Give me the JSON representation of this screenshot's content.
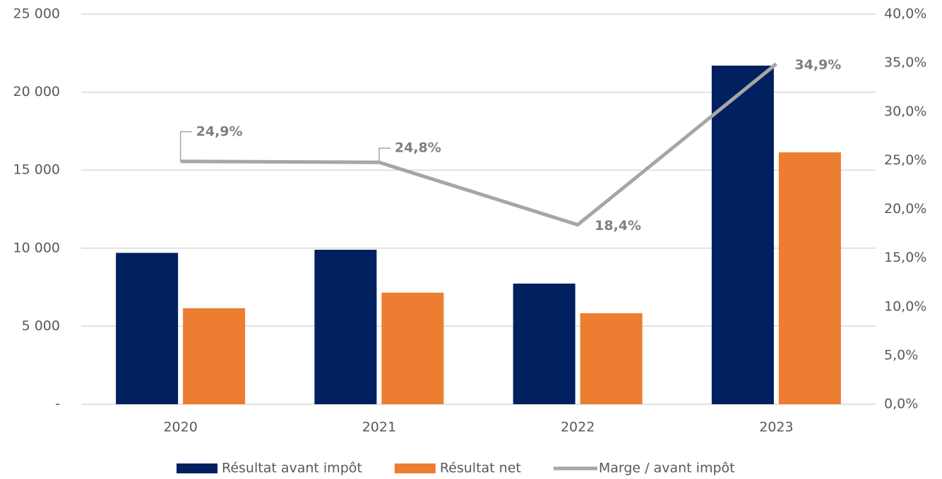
{
  "chart_data": {
    "type": "bar_line",
    "categories": [
      "2020",
      "2021",
      "2022",
      "2023"
    ],
    "series": [
      {
        "name": "Résultat avant impôt",
        "color": "#002060",
        "type": "bar",
        "values": [
          9700,
          9900,
          7730,
          21700
        ]
      },
      {
        "name": "Résultat net",
        "color": "#ed7d31",
        "type": "bar",
        "values": [
          6150,
          7150,
          5830,
          16140
        ]
      },
      {
        "name": "Marge / avant impôt",
        "color": "#a6a6a6",
        "type": "line",
        "axis": "y2",
        "values": [
          24.9,
          24.8,
          18.4,
          34.9
        ],
        "value_labels": [
          "24,9%",
          "24,8%",
          "18,4%",
          "34,9%"
        ]
      }
    ],
    "ylim": [
      0,
      25000
    ],
    "yticks": [
      {
        "value": 0,
        "label": "-"
      },
      {
        "value": 5000,
        "label": "5 000"
      },
      {
        "value": 10000,
        "label": "10 000"
      },
      {
        "value": 15000,
        "label": "15 000"
      },
      {
        "value": 20000,
        "label": "20 000"
      },
      {
        "value": 25000,
        "label": "25 000"
      }
    ],
    "y2lim": [
      0,
      40
    ],
    "y2ticks": [
      {
        "value": 0,
        "label": "0,0%"
      },
      {
        "value": 5,
        "label": "5,0%"
      },
      {
        "value": 10,
        "label": "10,0%"
      },
      {
        "value": 15,
        "label": "15,0%"
      },
      {
        "value": 20,
        "label": "20,0%"
      },
      {
        "value": 25,
        "label": "25,0%"
      },
      {
        "value": 30,
        "label": "30,0%"
      },
      {
        "value": 35,
        "label": "35,0%"
      },
      {
        "value": 40,
        "label": "40,0%"
      }
    ],
    "grid": true,
    "legend": "bottom"
  }
}
